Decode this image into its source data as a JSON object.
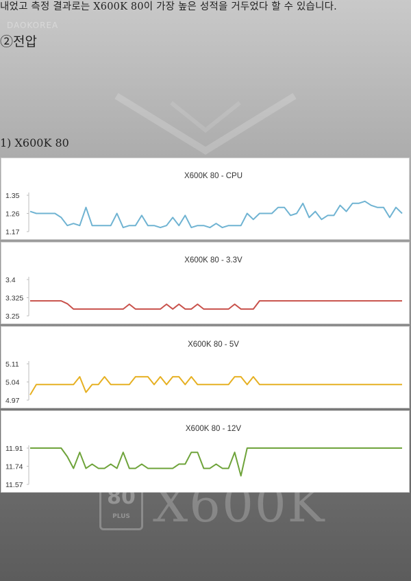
{
  "text": {
    "line1": "내었고 측정 결과로는 X600K 80이 가장 높은 성적을 거두었다 할 수 있습니다.",
    "heading": "②전압",
    "subheading": "1) X600K 80",
    "watermark": "DAOKOREA",
    "logo_80": "80",
    "logo_plus": "PLUS",
    "logo_text": "X600K"
  },
  "colors": {
    "cpu": "#6fb3d2",
    "v33": "#c8504a",
    "v5": "#e6b022",
    "v12": "#6ea33a"
  },
  "chart_data": [
    {
      "type": "line",
      "title": "X600K 80 - CPU",
      "color": "#6fb3d2",
      "ylim": [
        1.17,
        1.35
      ],
      "yticks": [
        "1.35",
        "1.26",
        "1.17"
      ],
      "values": [
        1.27,
        1.26,
        1.26,
        1.26,
        1.26,
        1.24,
        1.2,
        1.21,
        1.2,
        1.29,
        1.2,
        1.2,
        1.2,
        1.2,
        1.26,
        1.19,
        1.2,
        1.2,
        1.25,
        1.2,
        1.2,
        1.19,
        1.2,
        1.24,
        1.2,
        1.25,
        1.19,
        1.2,
        1.2,
        1.19,
        1.21,
        1.19,
        1.2,
        1.2,
        1.2,
        1.26,
        1.23,
        1.26,
        1.26,
        1.26,
        1.29,
        1.29,
        1.25,
        1.26,
        1.31,
        1.24,
        1.27,
        1.23,
        1.25,
        1.25,
        1.3,
        1.27,
        1.31,
        1.31,
        1.32,
        1.3,
        1.29,
        1.29,
        1.24,
        1.29,
        1.26
      ]
    },
    {
      "type": "line",
      "title": "X600K 80 - 3.3V",
      "color": "#c8504a",
      "ylim": [
        3.25,
        3.4
      ],
      "yticks": [
        "3.4",
        "3.325",
        "3.25"
      ],
      "values": [
        3.312,
        3.312,
        3.312,
        3.312,
        3.312,
        3.312,
        3.3,
        3.278,
        3.278,
        3.278,
        3.278,
        3.278,
        3.278,
        3.278,
        3.278,
        3.278,
        3.298,
        3.278,
        3.278,
        3.278,
        3.278,
        3.278,
        3.298,
        3.278,
        3.298,
        3.278,
        3.278,
        3.298,
        3.278,
        3.278,
        3.278,
        3.278,
        3.278,
        3.298,
        3.278,
        3.278,
        3.278,
        3.312,
        3.312,
        3.312,
        3.312,
        3.312,
        3.312,
        3.312,
        3.312,
        3.312,
        3.312,
        3.312,
        3.312,
        3.312,
        3.312,
        3.312,
        3.312,
        3.312,
        3.312,
        3.312,
        3.312,
        3.312,
        3.312,
        3.312,
        3.312
      ]
    },
    {
      "type": "line",
      "title": "X600K 80 - 5V",
      "color": "#e6b022",
      "ylim": [
        4.97,
        5.11
      ],
      "yticks": [
        "5.11",
        "5.04",
        "4.97"
      ],
      "values": [
        4.99,
        5.03,
        5.03,
        5.03,
        5.03,
        5.03,
        5.03,
        5.03,
        5.06,
        5.0,
        5.03,
        5.03,
        5.06,
        5.03,
        5.03,
        5.03,
        5.03,
        5.06,
        5.06,
        5.06,
        5.03,
        5.06,
        5.03,
        5.06,
        5.06,
        5.03,
        5.06,
        5.03,
        5.03,
        5.03,
        5.03,
        5.03,
        5.03,
        5.06,
        5.06,
        5.03,
        5.06,
        5.03,
        5.03,
        5.03,
        5.03,
        5.03,
        5.03,
        5.03,
        5.03,
        5.03,
        5.03,
        5.03,
        5.03,
        5.03,
        5.03,
        5.03,
        5.03,
        5.03,
        5.03,
        5.03,
        5.03,
        5.03,
        5.03,
        5.03,
        5.03
      ]
    },
    {
      "type": "line",
      "title": "X600K 80 - 12V",
      "color": "#6ea33a",
      "ylim": [
        11.57,
        11.91
      ],
      "yticks": [
        "11.91",
        "11.74",
        "11.57"
      ],
      "values": [
        11.91,
        11.91,
        11.91,
        11.91,
        11.91,
        11.91,
        11.83,
        11.72,
        11.87,
        11.72,
        11.76,
        11.72,
        11.72,
        11.76,
        11.72,
        11.87,
        11.72,
        11.72,
        11.76,
        11.72,
        11.72,
        11.72,
        11.72,
        11.72,
        11.76,
        11.76,
        11.87,
        11.87,
        11.72,
        11.72,
        11.76,
        11.72,
        11.72,
        11.87,
        11.65,
        11.91,
        11.91,
        11.91,
        11.91,
        11.91,
        11.91,
        11.91,
        11.91,
        11.91,
        11.91,
        11.91,
        11.91,
        11.91,
        11.91,
        11.91,
        11.91,
        11.91,
        11.91,
        11.91,
        11.91,
        11.91,
        11.91,
        11.91,
        11.91,
        11.91,
        11.91
      ]
    }
  ]
}
